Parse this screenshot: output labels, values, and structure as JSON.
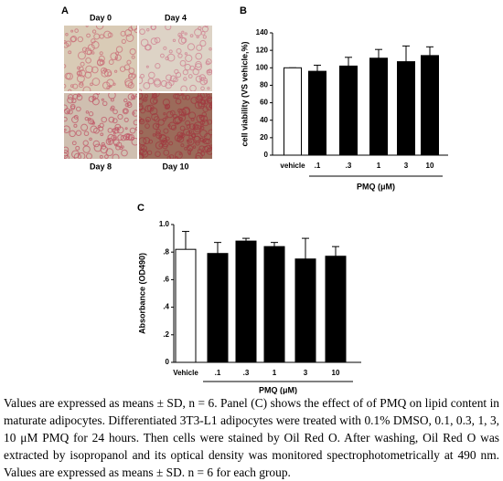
{
  "panel_a": {
    "label": "A",
    "images": [
      "Day 0",
      "Day 4",
      "Day 8",
      "Day 10"
    ]
  },
  "chart_data": [
    {
      "type": "bar",
      "panel": "B",
      "ylabel": "cell viability (VS vehicle,%)",
      "xlabel": "PMQ (μM)",
      "categories": [
        "vehicle",
        ".1",
        ".3",
        "1",
        "3",
        "10"
      ],
      "values": [
        100,
        96,
        102,
        111,
        107,
        114
      ],
      "errors": [
        0,
        7,
        10,
        10,
        18,
        10
      ],
      "colors": [
        "#ffffff",
        "#000000",
        "#000000",
        "#000000",
        "#000000",
        "#000000"
      ],
      "ylim": [
        0,
        140
      ],
      "yticks": [
        0,
        20,
        40,
        60,
        80,
        100,
        120,
        140
      ]
    },
    {
      "type": "bar",
      "panel": "C",
      "ylabel": "Absorbance (OD490)",
      "xlabel": "PMQ (μM)",
      "categories": [
        "Vehicle",
        ".1",
        ".3",
        "1",
        "3",
        "10"
      ],
      "values": [
        0.82,
        0.79,
        0.88,
        0.84,
        0.75,
        0.77
      ],
      "errors": [
        0.13,
        0.08,
        0.02,
        0.03,
        0.15,
        0.07
      ],
      "colors": [
        "#ffffff",
        "#000000",
        "#000000",
        "#000000",
        "#000000",
        "#000000"
      ],
      "ylim": [
        0,
        1.0
      ],
      "yticks": [
        0,
        {
          "value": 0.2,
          "label": ".2"
        },
        {
          "value": 0.4,
          "label": ".4"
        },
        {
          "value": 0.6,
          "label": ".6"
        },
        {
          "value": 0.8,
          "label": ".8"
        },
        {
          "value": 1.0,
          "label": "1.0"
        }
      ]
    }
  ],
  "caption": "Values are expressed as means ± SD, n = 6. Panel (C) shows the effect of of PMQ on lipid content in maturate adipocytes. Differentiated 3T3-L1 adipocytes were treated with 0.1% DMSO, 0.1, 0.3, 1, 3, 10 μM PMQ for 24 hours. Then cells were stained by Oil Red O. After washing, Oil Red O was extracted by isopropanol and its optical density was monitored spectrophotometrically at 490 nm. Values are expressed as means ± SD. n = 6 for each group."
}
